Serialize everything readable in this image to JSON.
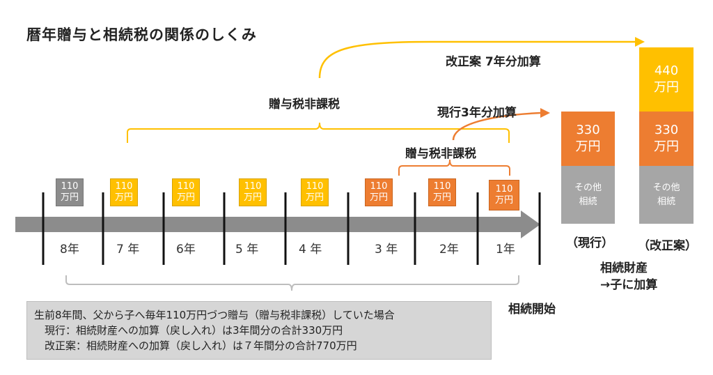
{
  "title": "暦年贈与と相続税の関係のしくみ",
  "labels": {
    "kaisei_add": "改正案 7年分加算",
    "nontax_upper": "贈与税非課税",
    "current_add": "現行3年分加算",
    "nontax_lower": "贈与税非課税",
    "start": "相続開始",
    "inherit_line1": "相続財産",
    "inherit_line2": "→子に加算"
  },
  "gifts": [
    {
      "amount": "110",
      "unit": "万円",
      "year": "8年",
      "color": "gray"
    },
    {
      "amount": "110",
      "unit": "万円",
      "year": "7 年",
      "color": "yellow"
    },
    {
      "amount": "110",
      "unit": "万円",
      "year": "6年",
      "color": "yellow"
    },
    {
      "amount": "110",
      "unit": "万円",
      "year": "5 年",
      "color": "yellow"
    },
    {
      "amount": "110",
      "unit": "万円",
      "year": "4 年",
      "color": "yellow"
    },
    {
      "amount": "110",
      "unit": "万円",
      "year": "3 年",
      "color": "orange"
    },
    {
      "amount": "110",
      "unit": "万円",
      "year": "2年",
      "color": "orange"
    },
    {
      "amount": "110",
      "unit": "万円",
      "year": "1年",
      "color": "orange"
    }
  ],
  "current": {
    "added": {
      "amount": "330",
      "unit": "万円"
    },
    "other": {
      "line1": "その他",
      "line2": "相続"
    },
    "caption": "（現行）"
  },
  "reform": {
    "extra": {
      "amount": "440",
      "unit": "万円"
    },
    "added": {
      "amount": "330",
      "unit": "万円"
    },
    "other": {
      "line1": "その他",
      "line2": "相続"
    },
    "caption": "（改正案）"
  },
  "note": {
    "line1": "生前8年間、父から子へ毎年110万円づつ贈与（贈与税非課税）していた場合",
    "line2": "　現行：相続財産への加算（戻し入れ）は3年間分の合計330万円",
    "line3": "　改正案：相続財産への加算（戻し入れ）は７年間分の合計770万円"
  },
  "colors": {
    "gray": "#8c8c8c",
    "yellow": "#ffc000",
    "orange": "#ed7d31",
    "arrow": "#8c8c8c"
  }
}
